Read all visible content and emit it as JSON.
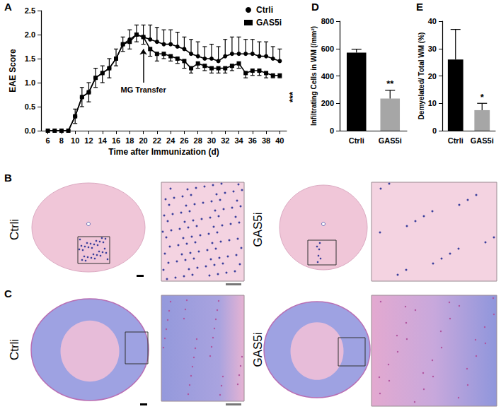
{
  "chart_data": [
    {
      "panel": "A",
      "type": "line",
      "x_label": "Time after Immunization (d)",
      "y_label": "EAE Score",
      "x": [
        6,
        7,
        8,
        9,
        10,
        11,
        12,
        13,
        14,
        15,
        16,
        17,
        18,
        19,
        20,
        21,
        22,
        23,
        24,
        25,
        26,
        27,
        28,
        29,
        30,
        31,
        32,
        33,
        34,
        35,
        36,
        37,
        38,
        39,
        40
      ],
      "xlim": [
        5,
        41
      ],
      "xticks": [
        6,
        8,
        10,
        12,
        14,
        16,
        18,
        20,
        22,
        24,
        26,
        28,
        30,
        32,
        34,
        36,
        38,
        40
      ],
      "ylim": [
        0,
        2.5
      ],
      "yticks": [
        {
          "value": 0,
          "label": "0.0"
        },
        {
          "value": 0.5,
          "label": "0.5"
        },
        {
          "value": 1,
          "label": "1.0"
        },
        {
          "value": 1.5,
          "label": "1.5"
        },
        {
          "value": 2,
          "label": "2.0"
        },
        {
          "value": 2.5,
          "label": "2.5"
        }
      ],
      "legend": "upper right",
      "series": [
        {
          "name": "Ctrli",
          "color": "#000000",
          "marker": "circle",
          "values": [
            0,
            0,
            0,
            0,
            0.3,
            0.7,
            0.8,
            1.1,
            1.2,
            1.3,
            1.5,
            1.8,
            1.9,
            2.0,
            1.95,
            1.9,
            1.85,
            1.8,
            1.8,
            1.75,
            1.7,
            1.6,
            1.55,
            1.5,
            1.5,
            1.45,
            1.55,
            1.6,
            1.6,
            1.6,
            1.6,
            1.55,
            1.55,
            1.5,
            1.45
          ],
          "error_plus": [
            0,
            0,
            0,
            0,
            0.15,
            0.2,
            0.2,
            0.2,
            0.15,
            0.2,
            0.2,
            0.15,
            0.2,
            0.2,
            0.25,
            0.3,
            0.3,
            0.3,
            0.3,
            0.3,
            0.25,
            0.3,
            0.3,
            0.25,
            0.3,
            0.3,
            0.35,
            0.35,
            0.35,
            0.3,
            0.3,
            0.3,
            0.3,
            0.25,
            0.25
          ]
        },
        {
          "name": "GAS5i",
          "color": "#000000",
          "marker": "square",
          "values": [
            0,
            0,
            0,
            0,
            0.3,
            0.7,
            0.8,
            1.1,
            1.2,
            1.3,
            1.5,
            1.8,
            1.85,
            2.0,
            1.95,
            1.7,
            1.6,
            1.6,
            1.55,
            1.5,
            1.45,
            1.3,
            1.4,
            1.35,
            1.3,
            1.3,
            1.3,
            1.35,
            1.4,
            1.2,
            1.25,
            1.25,
            1.2,
            1.15,
            1.15
          ],
          "error_minus": [
            0,
            0,
            0,
            0,
            0.15,
            0.2,
            0.2,
            0.2,
            0.2,
            0.2,
            0.15,
            0.15,
            0.15,
            0.15,
            0.15,
            0.15,
            0.15,
            0.1,
            0.1,
            0.1,
            0.15,
            0.1,
            0.1,
            0.1,
            0.1,
            0.1,
            0.1,
            0.1,
            0.1,
            0.1,
            0.1,
            0.1,
            0.1,
            0.05,
            0.05
          ]
        }
      ],
      "annotations": [
        {
          "text": "MG Transfer",
          "x": 20,
          "y": 1.0,
          "arrow_to": 1.7
        },
        {
          "text": "***"
        }
      ]
    },
    {
      "panel": "D",
      "type": "bar",
      "y_label": "Infiltrating Cells in WM (/mm²)",
      "categories": [
        "Ctrli",
        "GAS5i"
      ],
      "values": [
        570,
        235
      ],
      "errors": [
        25,
        60
      ],
      "colors": [
        "#000000",
        "#a6a6a6"
      ],
      "ylim": [
        0,
        800
      ],
      "yticks": [
        0,
        200,
        400,
        600,
        800
      ],
      "annotations": [
        {
          "text": "**",
          "category": "GAS5i"
        }
      ]
    },
    {
      "panel": "E",
      "type": "bar",
      "y_label": "Demyelated/ Total WM (%)",
      "categories": [
        "Ctrli",
        "GAS5i"
      ],
      "values": [
        26,
        7.5
      ],
      "errors": [
        11,
        2.5
      ],
      "colors": [
        "#000000",
        "#a6a6a6"
      ],
      "ylim": [
        0,
        40
      ],
      "yticks": [
        0,
        10,
        20,
        30,
        40
      ],
      "annotations": [
        {
          "text": "*",
          "category": "GAS5i"
        }
      ]
    }
  ],
  "image_panels": [
    {
      "panel": "B",
      "groups": [
        "Ctrli",
        "GAS5i"
      ]
    },
    {
      "panel": "C",
      "groups": [
        "Ctrli",
        "GAS5i"
      ]
    }
  ]
}
